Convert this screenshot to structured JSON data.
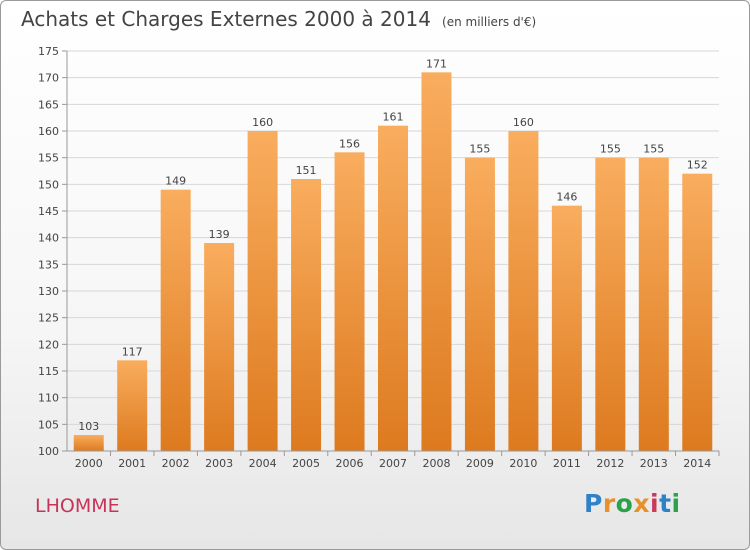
{
  "header": {
    "title": "Achats et Charges Externes 2000 à 2014",
    "subtitle": "(en milliers d'€)"
  },
  "footer": {
    "place": "LHOMME",
    "logo_text": "Proxiti",
    "logo_colors": [
      "#2f82c8",
      "#e8902a",
      "#2aa24a",
      "#e8902a",
      "#c93a5a",
      "#2f82c8",
      "#2aa24a"
    ]
  },
  "colors": {
    "bar_light": "#f9ad5e",
    "bar_dark": "#dd7a1f",
    "grid": "#d7d7d7",
    "axis": "#999999",
    "text": "#444444"
  },
  "chart_data": {
    "type": "bar",
    "categories": [
      "2000",
      "2001",
      "2002",
      "2003",
      "2004",
      "2005",
      "2006",
      "2007",
      "2008",
      "2009",
      "2010",
      "2011",
      "2012",
      "2013",
      "2014"
    ],
    "values": [
      103,
      117,
      149,
      139,
      160,
      151,
      156,
      161,
      171,
      155,
      160,
      146,
      155,
      155,
      152
    ],
    "ylim": [
      100,
      175
    ],
    "yticks": [
      100,
      105,
      110,
      115,
      120,
      125,
      130,
      135,
      140,
      145,
      150,
      155,
      160,
      165,
      170,
      175
    ],
    "grid": true,
    "data_labels": true
  }
}
